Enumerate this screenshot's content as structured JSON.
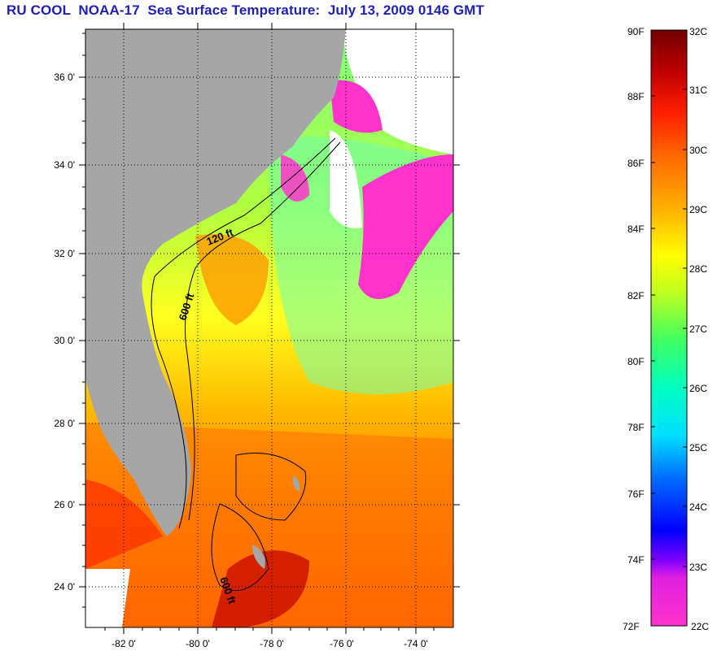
{
  "title": "RU COOL  NOAA-17  Sea Surface Temperature:  July 13, 2009 0146 GMT",
  "map": {
    "lat_labels": [
      "36 0'",
      "34 0'",
      "32 0'",
      "30 0'",
      "28 0'",
      "26 0'",
      "24 0'"
    ],
    "lon_labels": [
      "-82 0'",
      "-80 0'",
      "-78 0'",
      "-76 0'",
      "-74 0'"
    ],
    "contour_labels": [
      "120 ft",
      "600 ft",
      "600 ft"
    ]
  },
  "colorbar": {
    "fahrenheit": [
      "90F",
      "88F",
      "86F",
      "84F",
      "82F",
      "80F",
      "78F",
      "76F",
      "74F",
      "72F"
    ],
    "celsius": [
      "32C",
      "31C",
      "30C",
      "29C",
      "28C",
      "27C",
      "26C",
      "25C",
      "24C",
      "23C",
      "22C"
    ],
    "colors": [
      "#ff33cc",
      "#8000ff",
      "#0000ff",
      "#0090ff",
      "#00ffff",
      "#00ff80",
      "#a0ff00",
      "#ffff00",
      "#ffb000",
      "#ff6000",
      "#ff0000",
      "#c00000",
      "#700000"
    ]
  },
  "colors": {
    "title": "#1f1fb4",
    "land": "#a6a6a6",
    "no_data": "#ffffff"
  }
}
